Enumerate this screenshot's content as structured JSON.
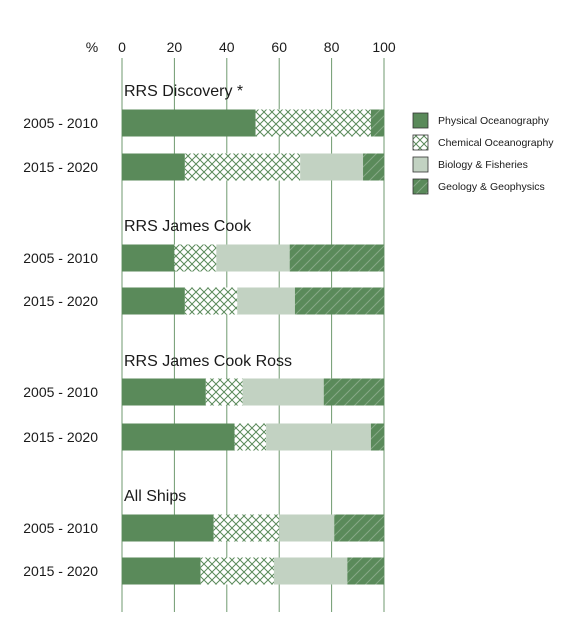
{
  "chart_data": {
    "type": "bar",
    "stacked": true,
    "orientation": "horizontal",
    "axis_unit_label": "%",
    "xlim": [
      0,
      100
    ],
    "xticks": [
      0,
      20,
      40,
      60,
      80,
      100
    ],
    "grid": true,
    "legend_position": "right",
    "colors": {
      "physical": "#5a8a5a",
      "chemical_line": "#5a8a5a",
      "biology": "#c2d2c2",
      "geology": "#5a8a5a",
      "grid": "#6f9a6f"
    },
    "series": [
      {
        "name": "Physical Oceanography",
        "pattern": "solid"
      },
      {
        "name": "Chemical Oceanography",
        "pattern": "crosshatch"
      },
      {
        "name": "Biology & Fisheries",
        "pattern": "light"
      },
      {
        "name": "Geology & Geophysics",
        "pattern": "diagonal"
      }
    ],
    "groups": [
      {
        "title": "RRS Discovery *",
        "bars": [
          {
            "label": "2005 - 2010",
            "values": [
              51,
              44,
              0,
              5
            ]
          },
          {
            "label": "2015 - 2020",
            "values": [
              24,
              44,
              24,
              8
            ]
          }
        ]
      },
      {
        "title": "RRS James Cook",
        "bars": [
          {
            "label": "2005 - 2010",
            "values": [
              20,
              16,
              28,
              36
            ]
          },
          {
            "label": "2015 - 2020",
            "values": [
              24,
              20,
              22,
              34
            ]
          }
        ]
      },
      {
        "title": "RRS James Cook Ross",
        "bars": [
          {
            "label": "2005 - 2010",
            "values": [
              32,
              14,
              31,
              23
            ]
          },
          {
            "label": "2015 - 2020",
            "values": [
              43,
              12,
              40,
              5
            ]
          }
        ]
      },
      {
        "title": "All Ships",
        "bars": [
          {
            "label": "2005 - 2010",
            "values": [
              35,
              25,
              21,
              19
            ]
          },
          {
            "label": "2015 - 2020",
            "values": [
              30,
              28,
              28,
              14
            ]
          }
        ]
      }
    ]
  }
}
